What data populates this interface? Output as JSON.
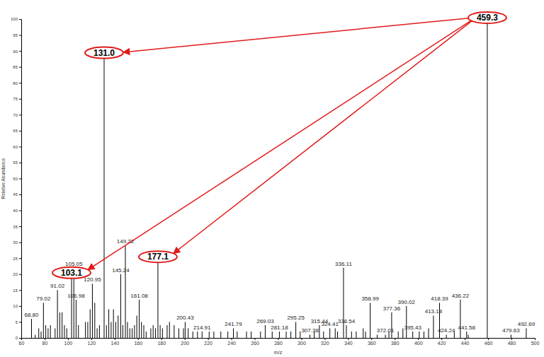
{
  "chart_data": {
    "type": "stick",
    "x_label": "m/z",
    "y_label": "Relative Abundance",
    "color": "#000000",
    "grid": false,
    "xlim": [
      60,
      500
    ],
    "xticks": [
      60,
      80,
      100,
      120,
      140,
      160,
      180,
      200,
      220,
      240,
      260,
      280,
      300,
      320,
      340,
      360,
      380,
      400,
      420,
      440,
      460,
      480,
      500
    ],
    "ylim": [
      0,
      100
    ],
    "yticks": [
      0,
      5,
      10,
      15,
      20,
      25,
      30,
      35,
      40,
      45,
      50,
      55,
      60,
      65,
      70,
      75,
      80,
      85,
      90,
      95,
      100
    ],
    "x": [
      68.8,
      72,
      75,
      77,
      79.02,
      81,
      83,
      85,
      89,
      91.02,
      93,
      95,
      97,
      99,
      103.1,
      105.05,
      106.98,
      109,
      115,
      117,
      119,
      120.95,
      123,
      125,
      127,
      131.0,
      133,
      135,
      137,
      139,
      141,
      143,
      145.24,
      147,
      149.22,
      151,
      153,
      155,
      157,
      159,
      161.08,
      163,
      165,
      167,
      171,
      173,
      175,
      177.1,
      179,
      181,
      185,
      187,
      191,
      195,
      199,
      200.43,
      203,
      207,
      211,
      214.91,
      221,
      225,
      231,
      237,
      241.79,
      245,
      253,
      257,
      265,
      269.03,
      275,
      281.18,
      287,
      291,
      295.25,
      299,
      307.38,
      311,
      315.44,
      319,
      324.41,
      329,
      331,
      336.11,
      338.54,
      343,
      347,
      353,
      355,
      358.99,
      365,
      372.01,
      375,
      377.36,
      383,
      387,
      390.02,
      395.43,
      401,
      405,
      409,
      413.18,
      418.39,
      424.24,
      431,
      436.22,
      441.58,
      443,
      459.3,
      479.63,
      492.69
    ],
    "values": [
      6,
      1,
      3,
      2,
      11,
      4,
      3,
      4,
      3,
      15,
      8,
      8,
      4,
      3,
      20,
      22,
      12,
      4,
      5,
      5,
      9,
      17,
      11,
      3,
      4,
      89,
      4,
      9,
      5,
      9,
      5,
      7,
      20,
      4,
      29,
      5,
      3,
      3,
      4,
      7,
      12,
      5,
      4,
      2,
      3,
      4,
      3,
      25,
      4,
      3,
      4,
      5,
      4,
      3,
      3,
      5,
      3,
      2,
      2,
      2,
      2,
      2,
      2,
      2,
      3,
      2,
      2,
      2,
      2,
      4,
      2,
      2,
      2,
      2,
      5,
      2,
      1,
      2,
      4,
      2,
      3,
      3,
      2,
      22,
      4,
      2,
      2,
      3,
      2,
      11,
      1,
      1,
      2,
      8,
      2,
      3,
      10,
      2,
      2,
      2,
      3,
      7,
      11,
      1,
      2,
      12,
      2,
      1,
      100,
      1,
      3
    ],
    "x_labels": [
      "68.80",
      null,
      null,
      null,
      "79.02",
      null,
      null,
      null,
      null,
      "91.02",
      null,
      null,
      null,
      null,
      null,
      "105.05",
      "106.98",
      null,
      null,
      null,
      null,
      "120.95",
      null,
      null,
      null,
      null,
      null,
      null,
      null,
      null,
      null,
      null,
      "145.24",
      null,
      "149.22",
      null,
      null,
      null,
      null,
      null,
      "161.08",
      null,
      null,
      null,
      null,
      null,
      null,
      null,
      null,
      null,
      null,
      null,
      null,
      null,
      null,
      "200.43",
      null,
      null,
      null,
      "214.91",
      null,
      null,
      null,
      null,
      "241.79",
      null,
      null,
      null,
      null,
      "269.03",
      null,
      "281.18",
      null,
      null,
      "295.25",
      null,
      "307.38",
      null,
      "315.44",
      null,
      "324.41",
      null,
      null,
      "336.11",
      "338.54",
      null,
      null,
      null,
      null,
      "358.99",
      null,
      "372.01",
      null,
      "377.36",
      null,
      null,
      "390.02",
      "395.43",
      null,
      null,
      null,
      "413.18",
      "418.39",
      "424.24",
      null,
      "436.22",
      "441.58",
      null,
      null,
      "479.63",
      "492.69"
    ],
    "annotations": [
      {
        "text": "459.3",
        "x": 459.3,
        "y": 100
      },
      {
        "text": "131.0",
        "x": 131.0,
        "y": 89
      },
      {
        "text": "103.1",
        "x": 103.1,
        "y": 20
      },
      {
        "text": "177.1",
        "x": 177.1,
        "y": 25
      }
    ]
  }
}
